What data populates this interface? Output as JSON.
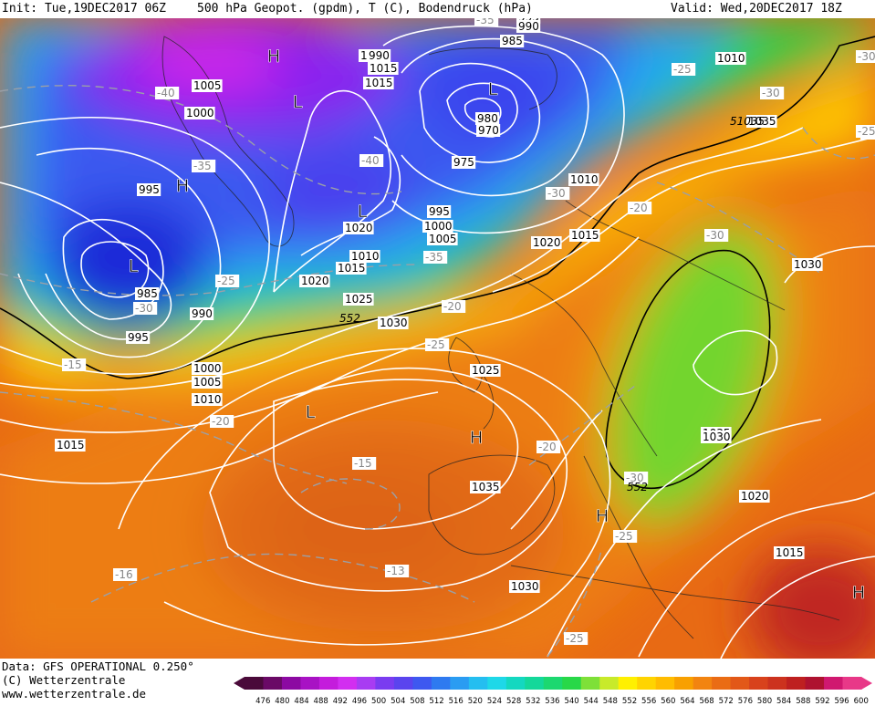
{
  "header": {
    "init": "Init: Tue,19DEC2017 06Z",
    "fields": "500 hPa Geopot. (gpdm), T (C), Bodendruck (hPa)",
    "valid": "Valid: Wed,20DEC2017 18Z"
  },
  "footer": {
    "data_line": "Data: GFS OPERATIONAL 0.250°",
    "copyright": "(C) Wetterzentrale",
    "website": "www.wetterzentrale.de"
  },
  "colorbar": {
    "ticks": [
      "476",
      "480",
      "484",
      "488",
      "492",
      "496",
      "500",
      "504",
      "508",
      "512",
      "516",
      "520",
      "524",
      "528",
      "532",
      "536",
      "540",
      "544",
      "548",
      "552",
      "556",
      "560",
      "564",
      "568",
      "572",
      "576",
      "580",
      "584",
      "588",
      "592",
      "596",
      "600"
    ],
    "colors": [
      "#4a0a3a",
      "#6a0a66",
      "#8c0aa2",
      "#a812c4",
      "#c41cdc",
      "#d22ef0",
      "#a83cf2",
      "#7a3cf0",
      "#5a44ee",
      "#3e58f0",
      "#2e7af0",
      "#2a9cf2",
      "#24bef0",
      "#1ed8e8",
      "#14d8c0",
      "#14d89a",
      "#1cd870",
      "#28d848",
      "#7ee038",
      "#c8ea2a",
      "#fff000",
      "#ffd400",
      "#ffbc00",
      "#f8a000",
      "#f28410",
      "#ea6c14",
      "#e25818",
      "#d8421c",
      "#cc321e",
      "#be2020",
      "#ae1230",
      "#d01870",
      "#e83888"
    ]
  },
  "pressure_labels": [
    {
      "t": "1005"
    },
    {
      "t": "1000"
    },
    {
      "t": "995"
    },
    {
      "t": "985"
    },
    {
      "t": "990"
    },
    {
      "t": "995"
    },
    {
      "t": "1000"
    },
    {
      "t": "1005"
    },
    {
      "t": "1010"
    },
    {
      "t": "1015"
    },
    {
      "t": "1020"
    },
    {
      "t": "1025"
    },
    {
      "t": "1030"
    },
    {
      "t": "1010"
    },
    {
      "t": "1015"
    },
    {
      "t": "1020"
    },
    {
      "t": "1010"
    },
    {
      "t": "1015"
    },
    {
      "t": "995"
    },
    {
      "t": "1000"
    },
    {
      "t": "1005"
    },
    {
      "t": "1010"
    },
    {
      "t": "1020"
    },
    {
      "t": "1015"
    },
    {
      "t": "995"
    },
    {
      "t": "990"
    },
    {
      "t": "985"
    },
    {
      "t": "980"
    },
    {
      "t": "970"
    },
    {
      "t": "975"
    },
    {
      "t": "990"
    },
    {
      "t": "1010"
    },
    {
      "t": "1025"
    },
    {
      "t": "1035"
    },
    {
      "t": "1035"
    },
    {
      "t": "1035"
    },
    {
      "t": "1030"
    },
    {
      "t": "1030"
    },
    {
      "t": "1030"
    },
    {
      "t": "1020"
    },
    {
      "t": "1015"
    },
    {
      "t": "1015"
    }
  ],
  "temp_labels": [
    {
      "t": "-40"
    },
    {
      "t": "-35"
    },
    {
      "t": "-30"
    },
    {
      "t": "-25"
    },
    {
      "t": "-15"
    },
    {
      "t": "-20"
    },
    {
      "t": "-16"
    },
    {
      "t": "-40"
    },
    {
      "t": "-35"
    },
    {
      "t": "-35"
    },
    {
      "t": "-25"
    },
    {
      "t": "-20"
    },
    {
      "t": "-15"
    },
    {
      "t": "-13"
    },
    {
      "t": "-30"
    },
    {
      "t": "-25"
    },
    {
      "t": "-30"
    },
    {
      "t": "-20"
    },
    {
      "t": "-30"
    },
    {
      "t": "-30"
    },
    {
      "t": "-25"
    },
    {
      "t": "-30"
    },
    {
      "t": "-25"
    },
    {
      "t": "-20"
    },
    {
      "t": "-25"
    },
    {
      "t": "-30"
    },
    {
      "t": "-25"
    }
  ],
  "height_labels": [
    {
      "t": "552"
    },
    {
      "t": "552"
    },
    {
      "t": "51035"
    }
  ],
  "systems": [
    {
      "t": "H"
    },
    {
      "t": "L"
    },
    {
      "t": "L"
    },
    {
      "t": "H"
    },
    {
      "t": "L"
    },
    {
      "t": "L"
    },
    {
      "t": "L"
    },
    {
      "t": "H"
    },
    {
      "t": "H"
    },
    {
      "t": "H"
    }
  ]
}
